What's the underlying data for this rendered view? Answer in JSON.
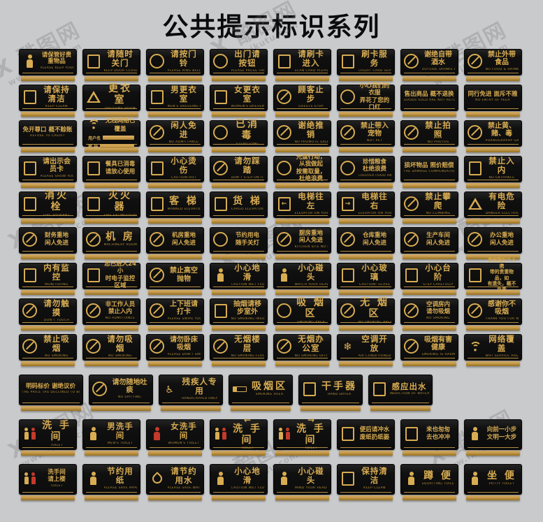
{
  "title": "公共提示标识系列",
  "watermark": {
    "brand": "X 酷图网",
    "url": "www.ikutu.com"
  },
  "colors": {
    "gold": "#d8ac52",
    "plaque_black": "#101010",
    "background": "#c9cacc",
    "female_red": "#c43a2b"
  },
  "rows": [
    [
      {
        "zh": "请保管好贵重物品",
        "en": "PLEASE KEEP YOUR VALUABLES SAFE",
        "icon": "valuables-warning-icon",
        "glyph": "person"
      },
      {
        "zh": "请随时关门",
        "en": "KEEP DOOR CLOSED",
        "icon": "closed-door-icon",
        "glyph": "square"
      },
      {
        "zh": "请按门铃",
        "en": "PLEASE RING BELL",
        "icon": "doorbell-hand-icon",
        "glyph": "circle"
      },
      {
        "zh": "出门请按钮",
        "en": "PLEASE PRESS THE BUTTON",
        "icon": "exit-button-hand-icon",
        "glyph": "circle"
      },
      {
        "zh": "请刷卡进入",
        "en": "SCAN CARD PLEASE",
        "icon": "swipe-card-icon",
        "glyph": "square"
      },
      {
        "zh": "刷卡服务",
        "en": "CREDIT CARD SERVICE",
        "icon": "credit-card-icon",
        "glyph": "square"
      },
      {
        "zh": "谢绝自带酒水",
        "en": "OUTSIDE DRINKS ARE PROHIBITED",
        "icon": "no-outside-drinks-icon",
        "glyph": "prohibit"
      },
      {
        "zh": "禁止外带食品",
        "en": "NO FOOD & DRINK",
        "icon": "no-outside-food-icon",
        "glyph": "prohibit"
      }
    ],
    [
      {
        "zh": "请保持清洁",
        "en": "KEEP CLEAN",
        "icon": "keep-clean-icon",
        "glyph": "square"
      },
      {
        "zh": "更衣室",
        "en": "DRESSING ROOM",
        "icon": "hanger-icon",
        "glyph": "triangle"
      },
      {
        "zh": "男更衣室",
        "en": "MEN'S DRESSING ROOM",
        "icon": "men-dressing-icon",
        "glyph": "square"
      },
      {
        "zh": "女更衣室",
        "en": "WOMEN'S DRESSING ROOM",
        "icon": "women-dressing-icon",
        "glyph": "square"
      },
      {
        "zh": "顾客止步",
        "en": "GUESTS STOP",
        "icon": "guests-stop-icon",
        "glyph": "prohibit"
      },
      {
        "zh": "小心我们的衣服\n弄花了您的口红",
        "en": "",
        "icon": "lips-icon",
        "glyph": "circle"
      },
      {
        "zh": "售出商品 概不退换",
        "en": "GOODS SOLD ARE NOT RETURNABLE",
        "icon": "",
        "glyph": "none"
      },
      {
        "zh": "同行免进 面斥不雅",
        "en": "NO ENTRY OF PEER",
        "icon": "",
        "glyph": "none"
      }
    ],
    [
      {
        "zh": "免开尊口 概不赊账",
        "en": "REFUSE TO CREDIT",
        "icon": "",
        "glyph": "none"
      },
      {
        "zh": "无线网络已覆盖",
        "en": "",
        "icon": "wifi-icon",
        "glyph": "wifi",
        "fields": [
          "用户名",
          "密  码"
        ]
      },
      {
        "zh": "闲人免进",
        "en": "NO ADMITTANCE",
        "icon": "no-entry-person-icon",
        "glyph": "prohibit"
      },
      {
        "zh": "已消毒",
        "en": "STERILIZING",
        "icon": "sterilized-icon",
        "glyph": "circle"
      },
      {
        "zh": "谢绝推销",
        "en": "NO PROMOTE SALES",
        "icon": "no-sales-icon",
        "glyph": "prohibit"
      },
      {
        "zh": "禁止带入宠物",
        "en": "NOT PET",
        "icon": "no-pets-icon",
        "glyph": "prohibit"
      },
      {
        "zh": "禁止拍照",
        "en": "NO PHOTOS",
        "icon": "no-camera-icon",
        "glyph": "prohibit"
      },
      {
        "zh": "禁止黄、赌、毒",
        "en": "PORNOGRAPHY GAMBLING AND DRUGS PROHIBITED",
        "icon": "no-vice-icon",
        "glyph": "prohibit"
      }
    ],
    [
      {
        "zh": "请出示会员卡",
        "en": "PLEASE SHOW YOUR VIP CARD",
        "icon": "vip-card-icon",
        "glyph": "square"
      },
      {
        "zh": "餐具已消毒\n请放心使用",
        "en": "",
        "icon": "cutlery-icon",
        "glyph": "square"
      },
      {
        "zh": "小心烫伤",
        "en": "CAUTION HOT",
        "icon": "hot-warning-icon",
        "glyph": "square"
      },
      {
        "zh": "请勿踩踏",
        "en": "DON'T STEP ON IT",
        "icon": "no-stepping-icon",
        "glyph": "prohibit"
      },
      {
        "zh": "光盘行动，从我做起\n按需取量，杜绝浪费",
        "en": "",
        "icon": "clean-plate-icon",
        "glyph": "circle"
      },
      {
        "zh": "珍惜粮食\n杜绝浪费",
        "en": "CHERISH FOOD AND ELIMINATE WASTE",
        "icon": "rice-bowl-icon",
        "glyph": "circle"
      },
      {
        "zh": "损坏物品 照价赔偿",
        "en": "THE DAMAGE COMPENSATION PRICE",
        "icon": "",
        "glyph": "none"
      },
      {
        "zh": "禁止入内",
        "en": "NO ENTRANCE",
        "icon": "no-entry-icon",
        "glyph": "square"
      }
    ],
    [
      {
        "zh": "消火栓",
        "en": "FIRE HYDRANT",
        "icon": "fire-hydrant-icon",
        "glyph": "square"
      },
      {
        "zh": "灭火器",
        "en": "FIRE EXTINGUISHER",
        "icon": "fire-extinguisher-icon",
        "glyph": "square"
      },
      {
        "zh": "客 梯",
        "en": "MANNED ELEVATOR",
        "icon": "elevator-icon",
        "glyph": "square"
      },
      {
        "zh": "货 梯",
        "en": "CARGO ELEVATOR",
        "icon": "cargo-elevator-icon",
        "glyph": "square"
      },
      {
        "zh": "电梯往左",
        "en": "ELEVATOR ON YOUR LEFT",
        "icon": "elevator-left-icon",
        "glyph": "elevator-left"
      },
      {
        "zh": "电梯往右",
        "en": "ELEVATOR ON YOUR RIGHT",
        "icon": "elevator-right-icon",
        "glyph": "elevator-right"
      },
      {
        "zh": "禁止攀爬",
        "en": "NO CLIMBING",
        "icon": "no-climbing-icon",
        "glyph": "prohibit"
      },
      {
        "zh": "有电危险",
        "en": "DANGER ELECTRIC SHOCK",
        "icon": "electric-danger-icon",
        "glyph": "triangle"
      }
    ],
    [
      {
        "zh": "财务重地\n闲人免进",
        "en": "",
        "icon": "no-entry-person-icon",
        "glyph": "prohibit"
      },
      {
        "zh": "机 房",
        "en": "MACHINERY ROOM",
        "icon": "no-entry-person-icon",
        "glyph": "prohibit"
      },
      {
        "zh": "机房重地\n闲人免进",
        "en": "",
        "icon": "no-entry-person-icon",
        "glyph": "prohibit"
      },
      {
        "zh": "节约用电\n随手关灯",
        "en": "",
        "icon": "power-save-hand-icon",
        "glyph": "circle"
      },
      {
        "zh": "厨房重地\n闲人免进",
        "en": "KITCHEN SITE NO ENTRY",
        "icon": "no-entry-person-icon",
        "glyph": "prohibit"
      },
      {
        "zh": "仓库重地\n闲人免进",
        "en": "",
        "icon": "no-entry-person-icon",
        "glyph": "prohibit"
      },
      {
        "zh": "生产车间\n闲人免进",
        "en": "",
        "icon": "no-entry-person-icon",
        "glyph": "prohibit"
      },
      {
        "zh": "办公重地\n闲人免进",
        "en": "",
        "icon": "no-entry-person-icon",
        "glyph": "prohibit"
      }
    ],
    [
      {
        "zh": "内有监控",
        "en": "MONITORING",
        "icon": "cctv-icon",
        "glyph": "square"
      },
      {
        "zh": "您已进入24小\n时电子监控区域",
        "en": "",
        "icon": "cctv-icon",
        "glyph": "square"
      },
      {
        "zh": "禁止高空抛物",
        "en": "",
        "icon": "no-throwing-icon",
        "glyph": "prohibit"
      },
      {
        "zh": "小心地滑",
        "en": "CAUTION WET FLOOR",
        "icon": "slip-warning-icon",
        "glyph": "person"
      },
      {
        "zh": "小心碰头",
        "en": "WATCH YOUR HEAD",
        "icon": "head-bump-icon",
        "glyph": "person"
      },
      {
        "zh": "小心玻璃",
        "en": "CAUTION!  GLASS",
        "icon": "glass-warning-icon",
        "glyph": "square"
      },
      {
        "zh": "小心台阶",
        "en": "STEP CAREFULLY",
        "icon": "steps-warning-icon",
        "glyph": "square"
      },
      {
        "zh": "请保管好个人携\n带的贵重物品，如\n有遗失，概不负责",
        "en": "",
        "icon": "belongings-notice-icon",
        "glyph": "square"
      }
    ],
    [
      {
        "zh": "请勿触摸",
        "en": "DON'T TOUCH",
        "icon": "no-touch-icon",
        "glyph": "prohibit"
      },
      {
        "zh": "非工作人员\n禁止入内",
        "en": "NO ADMITTANCE",
        "icon": "no-entry-person-icon",
        "glyph": "prohibit"
      },
      {
        "zh": "上下班请打卡",
        "en": "PLEASE SWIPE YOUR CARD",
        "icon": "punch-card-icon",
        "glyph": "prohibit"
      },
      {
        "zh": "抽烟请移步室外",
        "en": "NO SMOKING INSIDE THANK YOU",
        "icon": "smoke-outside-icon",
        "glyph": "square"
      },
      {
        "zh": "吸 烟 区",
        "en": "SMOKING AREA",
        "icon": "smoking-area-icon",
        "glyph": "circle"
      },
      {
        "zh": "无 烟 区",
        "en": "NO SMOKING AREA",
        "icon": "no-smoking-icon",
        "glyph": "prohibit"
      },
      {
        "zh": "空调房内\n请勿吸烟",
        "en": "NO SMOKING",
        "icon": "no-smoking-icon",
        "glyph": "prohibit"
      },
      {
        "zh": "感谢你不吸烟",
        "en": "THANK YOU FOR NOT SMOKING",
        "icon": "no-smoking-icon",
        "glyph": "prohibit"
      }
    ],
    [
      {
        "zh": "禁止吸烟",
        "en": "NO SMOKING",
        "icon": "no-smoking-icon",
        "glyph": "prohibit"
      },
      {
        "zh": "请勿吸烟",
        "en": "NO SMOKING",
        "icon": "no-smoking-icon",
        "glyph": "prohibit"
      },
      {
        "zh": "请勿卧床吸烟",
        "en": "PLEASE DON'T SMOKE IN BED",
        "icon": "no-smoking-icon",
        "glyph": "prohibit"
      },
      {
        "zh": "无烟楼层",
        "en": "NO SMOKING FLOOR",
        "icon": "no-smoking-icon",
        "glyph": "prohibit"
      },
      {
        "zh": "无烟办公室",
        "en": "NO SMOKING OFFICE",
        "icon": "no-smoking-icon",
        "glyph": "prohibit"
      },
      {
        "zh": "空调开放",
        "en": "AIR CONDITIONED",
        "icon": "snowflake-icon",
        "glyph": "snow"
      },
      {
        "zh": "吸烟有害健康",
        "en": "SMOKING IS HARMFUL TO HEALTH",
        "icon": "no-smoking-icon",
        "glyph": "prohibit"
      },
      {
        "zh": "网络覆盖",
        "en": "WIFI SERVICE AREA",
        "icon": "wifi-icon",
        "glyph": "wifi"
      }
    ],
    [
      {
        "zh": "明码标价 谢绝议价",
        "en": "THE PRICE TAG DECLINED TO BARGAIN",
        "icon": "",
        "glyph": "none"
      },
      {
        "zh": "请勿随地吐痰",
        "en": "NO SPITTING",
        "icon": "no-spitting-icon",
        "glyph": "prohibit"
      },
      {
        "zh": "残疾人专用",
        "en": "HANDICAPPED ONLY",
        "icon": "wheelchair-icon",
        "glyph": "wheelchair"
      },
      {
        "zh": "吸烟区",
        "en": "SMOKING AREA",
        "icon": "cigarette-icon",
        "glyph": "cig"
      },
      {
        "zh": "干手器",
        "en": "HAND DRYER",
        "icon": "hand-dryer-icon",
        "glyph": "square"
      },
      {
        "zh": "感应出水",
        "en": "INDUCTION OF WATER",
        "icon": "faucet-icon",
        "glyph": "square"
      }
    ],
    [
      {
        "zh": "洗 手 间",
        "en": "TOILET",
        "icon": "restroom-icon",
        "glyph": "pair"
      },
      {
        "zh": "男洗手间",
        "en": "MEN'S TOILET",
        "icon": "male-icon",
        "glyph": "person"
      },
      {
        "zh": "女洗手间",
        "en": "WOMEN'S TOILET",
        "icon": "female-icon",
        "glyph": "person-red"
      },
      {
        "zh": "洗 手 间",
        "en": "TOILET",
        "icon": "restroom-left-icon",
        "glyph": "pair",
        "arrow": "←"
      },
      {
        "zh": "洗 手 间",
        "en": "TOILET",
        "icon": "restroom-right-icon",
        "glyph": "pair",
        "arrow": "→"
      },
      {
        "zh": "便后请冲水\n废纸扔纸篓",
        "en": "",
        "icon": "flush-reminder-icon",
        "glyph": "square"
      },
      {
        "zh": "来也匆匆\n去也冲冲",
        "en": "",
        "icon": "flush-icon",
        "glyph": "square"
      },
      {
        "zh": "向前一小步\n文明一大步",
        "en": "",
        "icon": "step-forward-icon",
        "glyph": "person"
      }
    ],
    [
      {
        "zh": "洗手间\n请上楼",
        "en": "TOILET",
        "icon": "restroom-icon",
        "glyph": "pair"
      },
      {
        "zh": "节约用纸",
        "en": "PLEASE SAVE PAPER",
        "icon": "save-paper-icon",
        "glyph": "person"
      },
      {
        "zh": "请节约用水",
        "en": "PLEASE SAVE WATER",
        "icon": "water-drop-icon",
        "glyph": "drop"
      },
      {
        "zh": "小心地滑",
        "en": "CAUTION WET FLOOR",
        "icon": "slip-warning-icon",
        "glyph": "person"
      },
      {
        "zh": "小心碰头",
        "en": "MIND YOUR HEAD",
        "icon": "head-bump-icon",
        "glyph": "person"
      },
      {
        "zh": "保持清洁",
        "en": "KEEP CLEAN",
        "icon": "keep-clean-icon",
        "glyph": "square"
      },
      {
        "zh": "蹲 便",
        "en": "SQUATTING TOILET",
        "icon": "squat-toilet-icon",
        "glyph": "person"
      },
      {
        "zh": "坐 便",
        "en": "POTTY TOILET",
        "icon": "seat-toilet-icon",
        "glyph": "person"
      }
    ]
  ]
}
